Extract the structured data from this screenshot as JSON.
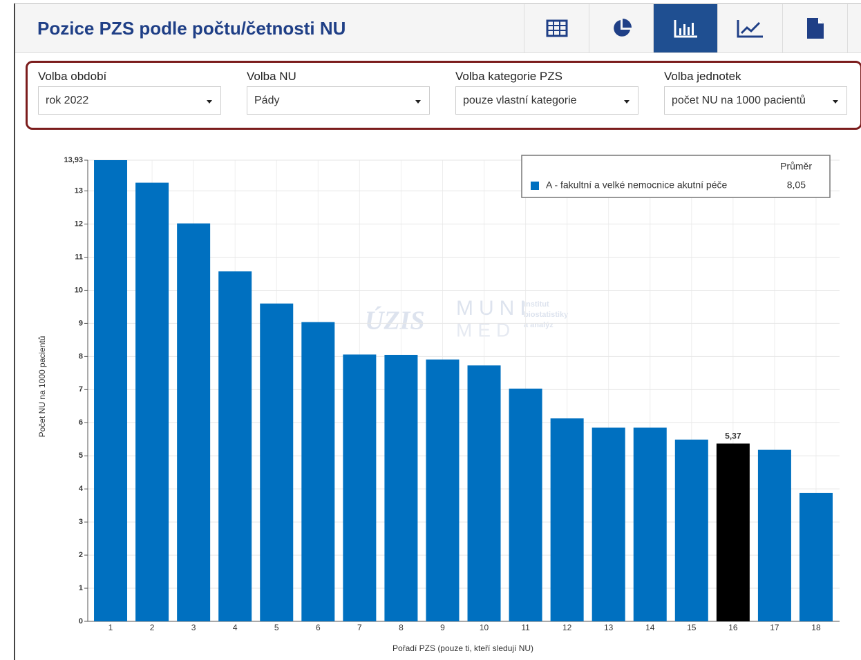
{
  "header": {
    "title": "Pozice PZS podle počtu/četnosti NU"
  },
  "filters": [
    {
      "label": "Volba období",
      "value": "rok 2022"
    },
    {
      "label": "Volba NU",
      "value": "Pády"
    },
    {
      "label": "Volba kategorie PZS",
      "value": "pouze vlastní kategorie"
    },
    {
      "label": "Volba jednotek",
      "value": "počet NU na 1000 pacientů"
    }
  ],
  "watermark": {
    "logo": "ÚZIS",
    "muni": "MUNI",
    "med": "MED",
    "institute": [
      "Institut",
      "biostatistiky",
      "a analýz"
    ]
  },
  "chart_data": {
    "type": "bar",
    "y_label": "Počet NU na 1000 pacientů",
    "x_label": "Pořadí PZS (pouze ti, kteří sledují NU)",
    "categories": [
      "1",
      "2",
      "3",
      "4",
      "5",
      "6",
      "7",
      "8",
      "9",
      "10",
      "11",
      "12",
      "13",
      "14",
      "15",
      "16",
      "17",
      "18"
    ],
    "series": [
      {
        "name": "A - fakultní a velké nemocnice akutní péče",
        "color": "#0070c0",
        "values": [
          13.93,
          13.25,
          12.02,
          10.57,
          9.6,
          9.04,
          8.06,
          8.05,
          7.91,
          7.73,
          7.03,
          6.13,
          5.85,
          5.85,
          5.49,
          5.37,
          5.18,
          3.88
        ],
        "point_colors": [
          "#0070c0",
          "#0070c0",
          "#0070c0",
          "#0070c0",
          "#0070c0",
          "#0070c0",
          "#0070c0",
          "#0070c0",
          "#0070c0",
          "#0070c0",
          "#0070c0",
          "#0070c0",
          "#0070c0",
          "#0070c0",
          "#0070c0",
          "#000000",
          "#0070c0",
          "#0070c0"
        ],
        "value_labels": [
          null,
          null,
          null,
          null,
          null,
          null,
          null,
          null,
          null,
          null,
          null,
          null,
          null,
          null,
          null,
          "5,37",
          null,
          null
        ]
      }
    ],
    "legend": {
      "header": "Průměr",
      "average": "8,05"
    },
    "ylim": [
      0,
      13.93
    ],
    "yticks": [
      0,
      1,
      2,
      3,
      4,
      5,
      6,
      7,
      8,
      9,
      10,
      11,
      12,
      13,
      {
        "value": 13.93,
        "label": "13,93"
      }
    ],
    "grid": true
  }
}
